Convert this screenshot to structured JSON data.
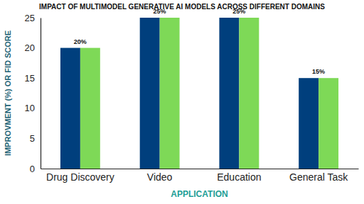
{
  "chart_data": {
    "type": "bar",
    "title": "IMPACT OF MULTIMODEL GENERATIVE AI MODELS ACROSS DIFFERENT DOMAINS",
    "x_label": "APPLICATION",
    "y_label": "IMPROVMENT (%) OR FID SCORE",
    "categories": [
      "Drug Discovery",
      "Video",
      "Education",
      "General Task"
    ],
    "series": [
      {
        "color": "#003f7d",
        "values": [
          20,
          25,
          25,
          15
        ],
        "value_labels": [
          "20%",
          "25%",
          "25%",
          "15%"
        ]
      },
      {
        "color": "#7ed957",
        "values": [
          20,
          25,
          25,
          15
        ]
      }
    ],
    "ylim": [
      0,
      25
    ],
    "yticks": [
      0,
      5,
      10,
      15,
      20,
      25
    ],
    "grid": false,
    "data_labels": true
  }
}
